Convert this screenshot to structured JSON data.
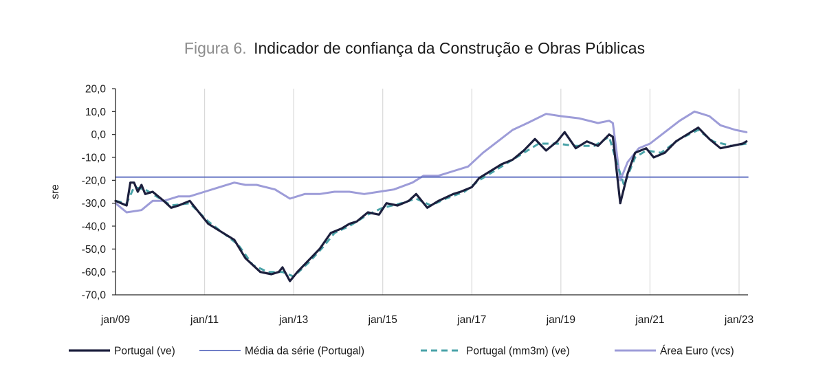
{
  "title": {
    "prefix": "Figura 6.",
    "main": "Indicador de confiança da Construção e Obras Públicas"
  },
  "colors": {
    "portugal": "#1c1f3d",
    "media": "#5b6bbf",
    "mm3m": "#4aa3a8",
    "euro": "#9d9cd8",
    "grid": "#d9d9d9",
    "axis": "#262626"
  },
  "chart_data": {
    "type": "line",
    "title": "Indicador de confiança da Construção e Obras Públicas",
    "ylabel": "sre",
    "xlabel": "",
    "ylim": [
      -70,
      20
    ],
    "yticks": [
      "20,0",
      "10,0",
      "0,0",
      "-10,0",
      "-20,0",
      "-30,0",
      "-40,0",
      "-50,0",
      "-60,0",
      "-70,0"
    ],
    "xticks": [
      "jan/09",
      "jan/11",
      "jan/13",
      "jan/15",
      "jan/17",
      "jan/19",
      "jan/21",
      "jan/23"
    ],
    "x_range": [
      "2009-01",
      "2023-03"
    ],
    "grid": "vertical",
    "legend_position": "bottom",
    "media_value": -18.6,
    "series": [
      {
        "name": "Portugal (ve)",
        "style": "solid-thick",
        "points": [
          [
            "2009-01",
            -29
          ],
          [
            "2009-04",
            -31
          ],
          [
            "2009-05",
            -21
          ],
          [
            "2009-06",
            -21
          ],
          [
            "2009-07",
            -25
          ],
          [
            "2009-08",
            -22
          ],
          [
            "2009-09",
            -26
          ],
          [
            "2009-11",
            -25
          ],
          [
            "2010-02",
            -29
          ],
          [
            "2010-04",
            -32
          ],
          [
            "2010-06",
            -31
          ],
          [
            "2010-09",
            -29
          ],
          [
            "2010-11",
            -33
          ],
          [
            "2011-02",
            -39
          ],
          [
            "2011-05",
            -42
          ],
          [
            "2011-09",
            -46
          ],
          [
            "2011-12",
            -54
          ],
          [
            "2012-02",
            -57
          ],
          [
            "2012-04",
            -60
          ],
          [
            "2012-07",
            -61
          ],
          [
            "2012-09",
            -60
          ],
          [
            "2012-10",
            -58
          ],
          [
            "2012-12",
            -64
          ],
          [
            "2013-02",
            -60
          ],
          [
            "2013-05",
            -55
          ],
          [
            "2013-08",
            -50
          ],
          [
            "2013-11",
            -43
          ],
          [
            "2014-02",
            -41
          ],
          [
            "2014-04",
            -39
          ],
          [
            "2014-06",
            -38
          ],
          [
            "2014-09",
            -34
          ],
          [
            "2014-12",
            -35
          ],
          [
            "2015-02",
            -30
          ],
          [
            "2015-05",
            -31
          ],
          [
            "2015-08",
            -29
          ],
          [
            "2015-10",
            -26
          ],
          [
            "2016-01",
            -32
          ],
          [
            "2016-04",
            -29
          ],
          [
            "2016-08",
            -26
          ],
          [
            "2016-10",
            -25
          ],
          [
            "2017-01",
            -23
          ],
          [
            "2017-03",
            -19
          ],
          [
            "2017-06",
            -16
          ],
          [
            "2017-09",
            -13
          ],
          [
            "2017-12",
            -11
          ],
          [
            "2018-03",
            -7
          ],
          [
            "2018-06",
            -2
          ],
          [
            "2018-09",
            -7
          ],
          [
            "2018-12",
            -3
          ],
          [
            "2019-02",
            1
          ],
          [
            "2019-05",
            -6
          ],
          [
            "2019-08",
            -3
          ],
          [
            "2019-11",
            -5
          ],
          [
            "2020-02",
            0
          ],
          [
            "2020-03",
            -1
          ],
          [
            "2020-05",
            -30
          ],
          [
            "2020-07",
            -17
          ],
          [
            "2020-09",
            -8
          ],
          [
            "2020-12",
            -6
          ],
          [
            "2021-02",
            -10
          ],
          [
            "2021-05",
            -8
          ],
          [
            "2021-08",
            -3
          ],
          [
            "2021-11",
            0
          ],
          [
            "2022-02",
            3
          ],
          [
            "2022-05",
            -2
          ],
          [
            "2022-08",
            -6
          ],
          [
            "2022-11",
            -5
          ],
          [
            "2023-02",
            -4
          ],
          [
            "2023-03",
            -3
          ]
        ]
      },
      {
        "name": "Média da série (Portugal)",
        "style": "solid-thin",
        "points": [
          [
            "2009-01",
            -18.6
          ],
          [
            "2023-03",
            -18.6
          ]
        ]
      },
      {
        "name": "Portugal (mm3m) (ve)",
        "style": "dashed",
        "points": [
          [
            "2009-01",
            -29
          ],
          [
            "2009-04",
            -30
          ],
          [
            "2009-06",
            -23
          ],
          [
            "2009-09",
            -24
          ],
          [
            "2009-12",
            -27
          ],
          [
            "2010-04",
            -31
          ],
          [
            "2010-09",
            -30
          ],
          [
            "2011-02",
            -38
          ],
          [
            "2011-06",
            -43
          ],
          [
            "2011-10",
            -48
          ],
          [
            "2012-02",
            -57
          ],
          [
            "2012-06",
            -60
          ],
          [
            "2012-10",
            -60
          ],
          [
            "2013-01",
            -62
          ],
          [
            "2013-05",
            -56
          ],
          [
            "2013-09",
            -49
          ],
          [
            "2013-12",
            -43
          ],
          [
            "2014-04",
            -40
          ],
          [
            "2014-09",
            -35
          ],
          [
            "2015-01",
            -32
          ],
          [
            "2015-06",
            -30
          ],
          [
            "2015-10",
            -28
          ],
          [
            "2016-02",
            -31
          ],
          [
            "2016-06",
            -28
          ],
          [
            "2016-11",
            -25
          ],
          [
            "2017-03",
            -20
          ],
          [
            "2017-09",
            -14
          ],
          [
            "2018-02",
            -9
          ],
          [
            "2018-07",
            -4
          ],
          [
            "2018-12",
            -4
          ],
          [
            "2019-05",
            -5
          ],
          [
            "2019-10",
            -5
          ],
          [
            "2020-02",
            -1
          ],
          [
            "2020-04",
            -12
          ],
          [
            "2020-06",
            -22
          ],
          [
            "2020-09",
            -10
          ],
          [
            "2020-12",
            -7
          ],
          [
            "2021-04",
            -8
          ],
          [
            "2021-09",
            -2
          ],
          [
            "2022-02",
            2
          ],
          [
            "2022-06",
            -3
          ],
          [
            "2022-11",
            -5
          ],
          [
            "2023-03",
            -4
          ]
        ]
      },
      {
        "name": "Área Euro (vcs)",
        "style": "solid-medium",
        "points": [
          [
            "2009-01",
            -30
          ],
          [
            "2009-04",
            -34
          ],
          [
            "2009-08",
            -33
          ],
          [
            "2009-11",
            -29
          ],
          [
            "2010-02",
            -29
          ],
          [
            "2010-06",
            -27
          ],
          [
            "2010-09",
            -27
          ],
          [
            "2011-01",
            -25
          ],
          [
            "2011-05",
            -23
          ],
          [
            "2011-09",
            -21
          ],
          [
            "2011-12",
            -22
          ],
          [
            "2012-03",
            -22
          ],
          [
            "2012-08",
            -24
          ],
          [
            "2012-12",
            -28
          ],
          [
            "2013-04",
            -26
          ],
          [
            "2013-08",
            -26
          ],
          [
            "2013-12",
            -25
          ],
          [
            "2014-04",
            -25
          ],
          [
            "2014-08",
            -26
          ],
          [
            "2014-12",
            -25
          ],
          [
            "2015-04",
            -24
          ],
          [
            "2015-09",
            -21
          ],
          [
            "2015-12",
            -18
          ],
          [
            "2016-04",
            -18
          ],
          [
            "2016-08",
            -16
          ],
          [
            "2016-12",
            -14
          ],
          [
            "2017-04",
            -8
          ],
          [
            "2017-08",
            -3
          ],
          [
            "2017-12",
            2
          ],
          [
            "2018-04",
            5
          ],
          [
            "2018-09",
            9
          ],
          [
            "2019-01",
            8
          ],
          [
            "2019-06",
            7
          ],
          [
            "2019-11",
            5
          ],
          [
            "2020-02",
            6
          ],
          [
            "2020-03",
            5
          ],
          [
            "2020-05",
            -20
          ],
          [
            "2020-07",
            -12
          ],
          [
            "2020-10",
            -6
          ],
          [
            "2021-01",
            -4
          ],
          [
            "2021-05",
            1
          ],
          [
            "2021-09",
            6
          ],
          [
            "2022-01",
            10
          ],
          [
            "2022-05",
            8
          ],
          [
            "2022-08",
            4
          ],
          [
            "2022-12",
            2
          ],
          [
            "2023-03",
            1
          ]
        ]
      }
    ]
  }
}
